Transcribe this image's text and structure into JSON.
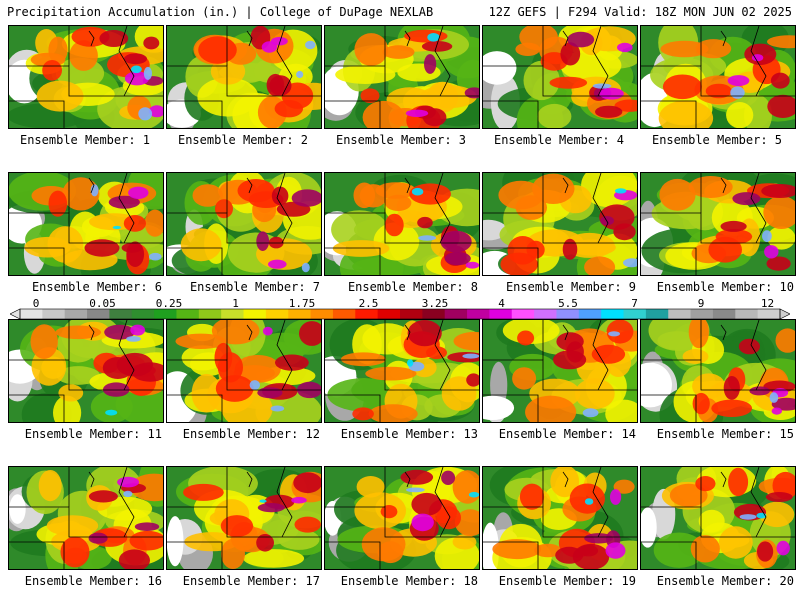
{
  "header": {
    "left": "Precipitation Accumulation (in.) | College of DuPage NEXLAB",
    "right": "12Z GEFS | F294 Valid: 18Z MON JUN 02 2025"
  },
  "colorbar": {
    "ticks": [
      "0",
      "0.05",
      "0.25",
      "1",
      "1.75",
      "2.5",
      "3.25",
      "4",
      "5.5",
      "7",
      "9",
      "12"
    ],
    "colors": [
      "#e4e4e4",
      "#c8c8c8",
      "#a8a8a8",
      "#888888",
      "#3f7f3f",
      "#2f8f2f",
      "#1fa01f",
      "#55b515",
      "#8fc81a",
      "#c8e02a",
      "#f3f300",
      "#ffd000",
      "#ffb000",
      "#ff8c00",
      "#ff5a00",
      "#ff1a00",
      "#e00000",
      "#b00010",
      "#8a0020",
      "#a00060",
      "#c000a0",
      "#e000e0",
      "#ff50ff",
      "#d070ff",
      "#9090ff",
      "#4fa0ff",
      "#00e0ff",
      "#30d0d0",
      "#20a0a0",
      "#bdbdbd",
      "#a0a0a0",
      "#8a8a8a",
      "#b8b8b8",
      "#cfcfcf"
    ]
  },
  "members": [
    {
      "label": "Ensemble Member: 1"
    },
    {
      "label": "Ensemble Member: 2"
    },
    {
      "label": "Ensemble Member: 3"
    },
    {
      "label": "Ensemble Member: 4"
    },
    {
      "label": "Ensemble Member: 5"
    },
    {
      "label": "Ensemble Member: 6"
    },
    {
      "label": "Ensemble Member: 7"
    },
    {
      "label": "Ensemble Member: 8"
    },
    {
      "label": "Ensemble Member: 9"
    },
    {
      "label": "Ensemble Member: 10"
    },
    {
      "label": "Ensemble Member: 11"
    },
    {
      "label": "Ensemble Member: 12"
    },
    {
      "label": "Ensemble Member: 13"
    },
    {
      "label": "Ensemble Member: 14"
    },
    {
      "label": "Ensemble Member: 15"
    },
    {
      "label": "Ensemble Member: 16"
    },
    {
      "label": "Ensemble Member: 17"
    },
    {
      "label": "Ensemble Member: 18"
    },
    {
      "label": "Ensemble Member: 19"
    },
    {
      "label": "Ensemble Member: 20"
    }
  ]
}
